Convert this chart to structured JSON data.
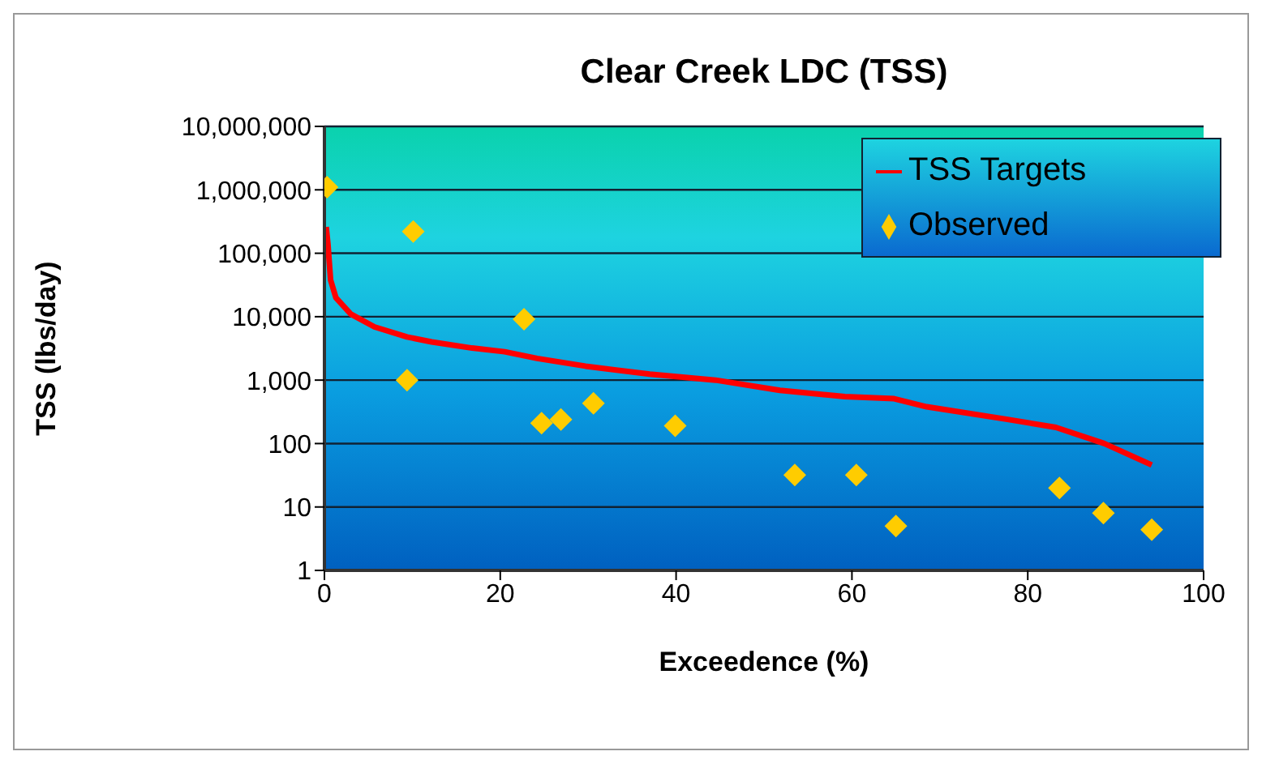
{
  "chart_data": {
    "type": "scatter",
    "title": "Clear Creek LDC (TSS)",
    "xlabel": "Exceedence (%)",
    "ylabel": "TSS (lbs/day)",
    "series": [
      {
        "name": "TSS Targets",
        "type": "line",
        "color": "#ff0000",
        "marker": "none",
        "line_style": "solid",
        "x": [
          0.2,
          0.4,
          0.7,
          1.3,
          3,
          5.7,
          9.4,
          12.2,
          16.8,
          20.5,
          24.2,
          29.7,
          37,
          44.5,
          51.8,
          59.2,
          64.8,
          68.5,
          77.7,
          83.2,
          88.7,
          94.1
        ],
        "values": [
          260000,
          140000,
          38000,
          20000,
          11000,
          6900,
          4800,
          4000,
          3200,
          2800,
          2200,
          1660,
          1240,
          1000,
          690,
          550,
          510,
          380,
          240,
          180,
          100,
          46
        ]
      },
      {
        "name": "Observed",
        "color": "#ffcc00",
        "marker": "diamond",
        "x": [
          0.3,
          10.1,
          9.4,
          22.7,
          24.7,
          26.9,
          30.6,
          39.9,
          53.5,
          60.5,
          65,
          83.6,
          88.6,
          94.1
        ],
        "values": [
          1100000,
          220000,
          1000,
          9100,
          210,
          240,
          430,
          190,
          32,
          32,
          5,
          20,
          8,
          4.4
        ]
      }
    ],
    "xlim": [
      0,
      100
    ],
    "xticks": [
      0,
      20,
      40,
      60,
      80,
      100
    ],
    "ylim": [
      1,
      10000000
    ],
    "yticks": [
      {
        "value": 1,
        "label": "1"
      },
      {
        "value": 10,
        "label": "10"
      },
      {
        "value": 100,
        "label": "100"
      },
      {
        "value": 1000,
        "label": "1,000"
      },
      {
        "value": 10000,
        "label": "10,000"
      },
      {
        "value": 100000,
        "label": "100,000"
      },
      {
        "value": 1000000,
        "label": "1,000,000"
      },
      {
        "value": 10000000,
        "label": "10,000,000"
      }
    ],
    "log": "y",
    "grid": "y",
    "legend": "top right"
  }
}
